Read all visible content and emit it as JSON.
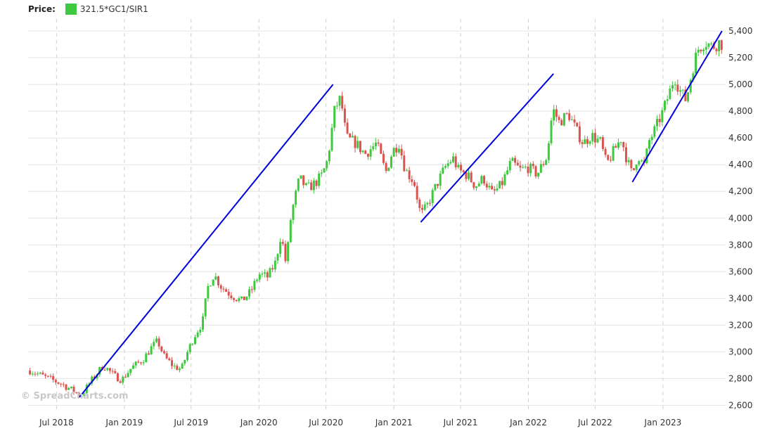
{
  "legend": {
    "price_label": "Price:",
    "series_name": "321.5*GC1/SIR1",
    "swatch_color": "#3ec83e"
  },
  "watermark": "© SpreadCharts.com",
  "colors": {
    "up": "#3ec83e",
    "down": "#d9534f",
    "trendline": "#0000dd",
    "grid": "#e3e3e3"
  },
  "chart_data": {
    "type": "candlestick",
    "title": "",
    "xlabel": "",
    "ylabel": "",
    "ylim": [
      2560,
      5490
    ],
    "yticks": [
      2600,
      2800,
      3000,
      3200,
      3400,
      3600,
      3800,
      4000,
      4200,
      4400,
      4600,
      4800,
      5000,
      5200,
      5400
    ],
    "ytick_labels": [
      "2,600",
      "2,800",
      "3,000",
      "3,200",
      "3,400",
      "3,600",
      "3,800",
      "4,000",
      "4,200",
      "4,400",
      "4,600",
      "4,800",
      "5,000",
      "5,200",
      "5,400"
    ],
    "xlim": [
      "2018-04-15",
      "2023-06-20"
    ],
    "xticks": [
      "2018-07-01",
      "2019-01-01",
      "2019-07-01",
      "2020-01-01",
      "2020-07-01",
      "2021-01-01",
      "2021-07-01",
      "2022-01-01",
      "2022-07-01",
      "2023-01-01"
    ],
    "xtick_labels": [
      "Jul 2018",
      "Jan 2019",
      "Jul 2019",
      "Jan 2020",
      "Jul 2020",
      "Jan 2021",
      "Jul 2021",
      "Jan 2022",
      "Jul 2022",
      "Jan 2023"
    ],
    "grid": true,
    "legend_position": "top-left",
    "y_axis_position": "right",
    "trendlines": [
      {
        "start": [
          "2018-09-01",
          2660
        ],
        "end": [
          "2020-07-20",
          5000
        ]
      },
      {
        "start": [
          "2021-03-15",
          3970
        ],
        "end": [
          "2022-03-10",
          5080
        ]
      },
      {
        "start": [
          "2022-10-10",
          4270
        ],
        "end": [
          "2023-06-10",
          5400
        ]
      }
    ],
    "anchors": [
      [
        "2018-04-20",
        2860
      ],
      [
        "2018-06-01",
        2810
      ],
      [
        "2018-07-15",
        2760
      ],
      [
        "2018-08-20",
        2700
      ],
      [
        "2018-09-05",
        2670
      ],
      [
        "2018-10-05",
        2790
      ],
      [
        "2018-11-05",
        2900
      ],
      [
        "2018-12-05",
        2820
      ],
      [
        "2018-12-25",
        2790
      ],
      [
        "2019-01-20",
        2880
      ],
      [
        "2019-02-20",
        2940
      ],
      [
        "2019-03-15",
        3030
      ],
      [
        "2019-04-01",
        3080
      ],
      [
        "2019-04-20",
        2960
      ],
      [
        "2019-05-15",
        2890
      ],
      [
        "2019-06-05",
        2870
      ],
      [
        "2019-06-20",
        2990
      ],
      [
        "2019-07-10",
        3120
      ],
      [
        "2019-08-01",
        3220
      ],
      [
        "2019-08-15",
        3480
      ],
      [
        "2019-09-01",
        3580
      ],
      [
        "2019-09-20",
        3490
      ],
      [
        "2019-10-15",
        3430
      ],
      [
        "2019-11-15",
        3380
      ],
      [
        "2019-12-10",
        3450
      ],
      [
        "2020-01-01",
        3580
      ],
      [
        "2020-01-25",
        3560
      ],
      [
        "2020-02-15",
        3670
      ],
      [
        "2020-03-01",
        3880
      ],
      [
        "2020-03-15",
        3650
      ],
      [
        "2020-03-28",
        4020
      ],
      [
        "2020-04-20",
        4300
      ],
      [
        "2020-05-10",
        4220
      ],
      [
        "2020-06-01",
        4260
      ],
      [
        "2020-06-20",
        4320
      ],
      [
        "2020-07-05",
        4430
      ],
      [
        "2020-07-25",
        4820
      ],
      [
        "2020-08-10",
        4900
      ],
      [
        "2020-08-25",
        4600
      ],
      [
        "2020-09-20",
        4560
      ],
      [
        "2020-10-15",
        4480
      ],
      [
        "2020-11-15",
        4560
      ],
      [
        "2020-12-10",
        4340
      ],
      [
        "2020-12-28",
        4500
      ],
      [
        "2021-01-15",
        4560
      ],
      [
        "2021-02-01",
        4360
      ],
      [
        "2021-02-25",
        4270
      ],
      [
        "2021-03-15",
        4020
      ],
      [
        "2021-04-01",
        4090
      ],
      [
        "2021-04-25",
        4240
      ],
      [
        "2021-05-20",
        4380
      ],
      [
        "2021-06-10",
        4450
      ],
      [
        "2021-06-25",
        4360
      ],
      [
        "2021-07-20",
        4320
      ],
      [
        "2021-08-10",
        4240
      ],
      [
        "2021-09-01",
        4300
      ],
      [
        "2021-09-25",
        4180
      ],
      [
        "2021-10-20",
        4250
      ],
      [
        "2021-11-15",
        4420
      ],
      [
        "2021-12-10",
        4360
      ],
      [
        "2021-12-30",
        4380
      ],
      [
        "2022-01-25",
        4330
      ],
      [
        "2022-02-20",
        4460
      ],
      [
        "2022-03-08",
        4820
      ],
      [
        "2022-03-25",
        4720
      ],
      [
        "2022-04-20",
        4780
      ],
      [
        "2022-05-10",
        4660
      ],
      [
        "2022-05-30",
        4560
      ],
      [
        "2022-06-20",
        4620
      ],
      [
        "2022-07-15",
        4570
      ],
      [
        "2022-08-01",
        4400
      ],
      [
        "2022-08-20",
        4500
      ],
      [
        "2022-09-10",
        4600
      ],
      [
        "2022-09-25",
        4440
      ],
      [
        "2022-10-10",
        4320
      ],
      [
        "2022-10-25",
        4480
      ],
      [
        "2022-11-10",
        4380
      ],
      [
        "2022-11-25",
        4580
      ],
      [
        "2022-12-10",
        4660
      ],
      [
        "2023-01-01",
        4800
      ],
      [
        "2023-01-20",
        4950
      ],
      [
        "2023-02-01",
        5060
      ],
      [
        "2023-02-15",
        4960
      ],
      [
        "2023-03-05",
        4880
      ],
      [
        "2023-03-20",
        5090
      ],
      [
        "2023-04-05",
        5260
      ],
      [
        "2023-04-25",
        5320
      ],
      [
        "2023-05-15",
        5280
      ],
      [
        "2023-06-05",
        5320
      ],
      [
        "2023-06-12",
        5290
      ]
    ]
  }
}
